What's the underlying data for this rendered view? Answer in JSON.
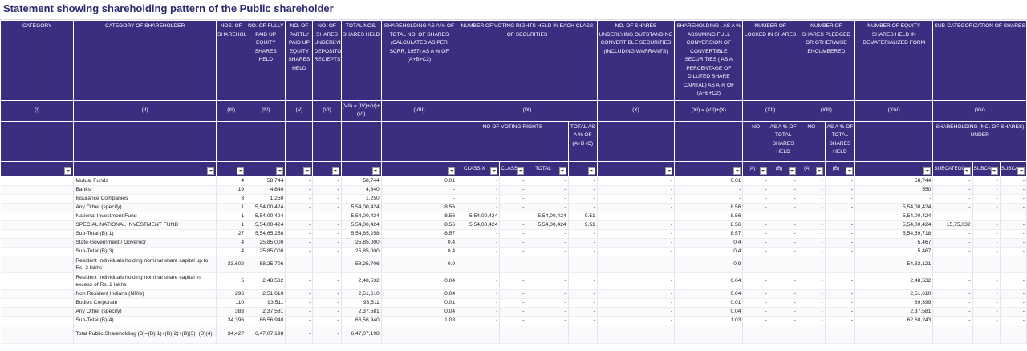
{
  "title": "Statement showing shareholding pattern of the Public shareholder",
  "headers": [
    "CATEGORY",
    "CATEGORY OF SHAREHOLDER",
    "NOS. OF SHAREHOLDERS",
    "NO. OF FULLY PAID UP EQUITY SHARES HELD",
    "NO. OF PARTLY PAID UP EQUITY SHARES HELD",
    "NO. OF SHARES UNDERLYING DEPOSITORY RECIEPTS",
    "TOTAL NOS. SHARES HELD",
    "SHAREHOLDING AS A % OF TOTAL NO. OF SHARES (CALCULATED AS PER SCRR, 1957) AS A % OF (A+B+C2)",
    "NUMBER OF VOTING RIGHTS HELD IN EACH CLASS OF SECURITIES",
    "NO. OF SHARES UNDERLYING OUTSTANDING CONVERTIBLE SECURITIES (INCLUDING WARRANTS)",
    "SHAREHOLDING , AS A % ASSUMING FULL CONVERSION OF CONVERTIBLE SECURITIES ( AS A PERCENTAGE OF DILUTED SHARE CAPITAL) AS A % OF (A+B+C2)",
    "NUMBER OF LOCKED IN SHARES",
    "NUMBER OF SHARES PLEDGED OR OTHERWISE ENCUMBERED",
    "NUMBER OF EQUITY SHARES HELD IN DEMATERIALIZED FORM",
    "SUB-CATEGORIZATION OF SHARES"
  ],
  "numerals": [
    "(I)",
    "(II)",
    "(III)",
    "(IV)",
    "(V)",
    "(VI)",
    "(VII) = (IV)+(V)+ (VI)",
    "(VIII)",
    "(IX)",
    "(X)",
    "(XI) = (VII)+(X)",
    "(XII)",
    "(XIII)",
    "(XIV)",
    "(XV)"
  ],
  "sub_headers": {
    "voting_rights": "NO OF VOTING RIGHTS",
    "total_abc": "TOTAL AS A % OF (A+B+C)",
    "locked_no": "NO",
    "locked_pct": "AS A % OF TOTAL SHARES HELD",
    "pledged_no": "NO",
    "pledged_pct": "AS A % OF TOTAL SHARES HELD",
    "subcat": "SHAREHOLDING (NO. OF SHARES) UNDER"
  },
  "filter_labels": [
    "",
    "",
    "",
    "",
    "",
    "",
    "",
    "",
    "CLASS X",
    "CLASS Y",
    "TOTAL",
    "",
    "",
    "",
    "(A)",
    "(B)",
    "(A)",
    "(B)",
    "",
    "SUBCATEGORY (I)",
    "SUBCATEGORY (",
    "SUBCATEGORY ("
  ],
  "rows": [
    {
      "name": "Mutual Funds",
      "c": [
        "4",
        "58,744",
        "-",
        "-",
        "58,744",
        "0.01",
        "-",
        "-",
        "-",
        "-",
        "-",
        "0.01",
        "-",
        "-",
        "-",
        "-",
        "58,744",
        "-",
        "-",
        "-"
      ]
    },
    {
      "name": "Banks",
      "c": [
        "19",
        "4,840",
        "-",
        "-",
        "4,840",
        "-",
        "-",
        "-",
        "-",
        "-",
        "-",
        "-",
        "-",
        "-",
        "-",
        "-",
        "550",
        "-",
        "-",
        "-"
      ]
    },
    {
      "name": "Insurance Companies",
      "c": [
        "3",
        "1,250",
        "-",
        "-",
        "1,250",
        "-",
        "-",
        "-",
        "-",
        "-",
        "-",
        "-",
        "-",
        "-",
        "-",
        "-",
        "-",
        "-",
        "-",
        "-"
      ]
    },
    {
      "name": "Any Other (specify)",
      "c": [
        "1",
        "5,54,00,424",
        "-",
        "-",
        "5,54,00,424",
        "8.56",
        "-",
        "-",
        "-",
        "-",
        "-",
        "8.56",
        "-",
        "-",
        "-",
        "-",
        "5,54,00,424",
        "-",
        "-",
        "-"
      ]
    },
    {
      "name": "National Investment Fund",
      "c": [
        "1",
        "5,54,00,424",
        "-",
        "-",
        "5,54,00,424",
        "8.56",
        "5,54,00,424",
        "-",
        "5,54,00,424",
        "9.51",
        "-",
        "8.56",
        "-",
        "-",
        "-",
        "-",
        "5,54,00,424",
        "-",
        "-",
        "-"
      ]
    },
    {
      "name": "SPECIAL NATIONAL INVESTMENT FUND",
      "c": [
        "1",
        "5,54,00,424",
        "-",
        "-",
        "5,54,00,424",
        "8.56",
        "5,54,00,424",
        "-",
        "5,54,00,424",
        "9.51",
        "-",
        "8.56",
        "-",
        "-",
        "-",
        "-",
        "5,54,00,424",
        "15,75,032",
        "-",
        "-"
      ]
    },
    {
      "name": "Sub-Total (B)(1)",
      "c": [
        "27",
        "5,54,65,258",
        "-",
        "-",
        "5,54,65,258",
        "8.57",
        "-",
        "-",
        "-",
        "-",
        "-",
        "8.57",
        "-",
        "-",
        "-",
        "-",
        "5,54,59,718",
        "-",
        "-",
        "-"
      ]
    },
    {
      "name": "State Government / Governor",
      "c": [
        "4",
        "25,85,000",
        "-",
        "-",
        "25,85,000",
        "0.4",
        "-",
        "-",
        "-",
        "-",
        "-",
        "0.4",
        "-",
        "-",
        "-",
        "-",
        "5,467",
        "-",
        "-",
        "-"
      ]
    },
    {
      "name": "Sub-Total (B)(3)",
      "c": [
        "4",
        "25,85,000",
        "-",
        "-",
        "25,85,000",
        "0.4",
        "-",
        "-",
        "-",
        "-",
        "-",
        "0.4",
        "-",
        "-",
        "-",
        "-",
        "5,467",
        "-",
        "-",
        "-"
      ]
    },
    {
      "name": "Resident Individuals holding nominal share capital up to Rs. 2 lakhs",
      "c": [
        "33,602",
        "58,25,706",
        "-",
        "-",
        "58,25,706",
        "0.9",
        "-",
        "-",
        "-",
        "-",
        "-",
        "0.9",
        "-",
        "-",
        "-",
        "-",
        "54,33,121",
        "-",
        "-",
        "-"
      ]
    },
    {
      "name": "Resident Individuals holding nominal share capital in excess of Rs. 2 lakhs",
      "c": [
        "5",
        "2,48,532",
        "-",
        "-",
        "2,48,532",
        "0.04",
        "-",
        "-",
        "-",
        "-",
        "-",
        "0.04",
        "-",
        "-",
        "-",
        "-",
        "2,48,532",
        "-",
        "-",
        "-"
      ]
    },
    {
      "name": "Non Resident Indians (NRIs)",
      "c": [
        "296",
        "2,51,610",
        "-",
        "-",
        "2,51,610",
        "0.04",
        "-",
        "-",
        "-",
        "-",
        "-",
        "0.04",
        "-",
        "-",
        "-",
        "-",
        "2,51,610",
        "-",
        "-",
        "-"
      ]
    },
    {
      "name": "Bodies Corporate",
      "c": [
        "110",
        "93,511",
        "-",
        "-",
        "93,511",
        "0.01",
        "-",
        "-",
        "-",
        "-",
        "-",
        "0.01",
        "-",
        "-",
        "-",
        "-",
        "89,399",
        "-",
        "-",
        "-"
      ]
    },
    {
      "name": "Any Other (specify)",
      "c": [
        "383",
        "2,37,581",
        "-",
        "-",
        "2,37,581",
        "0.04",
        "-",
        "-",
        "-",
        "-",
        "-",
        "0.04",
        "-",
        "-",
        "-",
        "-",
        "2,37,581",
        "-",
        "-",
        "-"
      ]
    },
    {
      "name": "Sub-Total (B)(4)",
      "c": [
        "34,396",
        "66,56,940",
        "-",
        "-",
        "66,56,940",
        "1.03",
        "-",
        "-",
        "-",
        "-",
        "-",
        "1.03",
        "-",
        "-",
        "-",
        "-",
        "62,60,243",
        "-",
        "-",
        "-"
      ]
    },
    {
      "name": "Total Public Shareholding (B)=(B)(1)+(B)(2)+(B)(3)+(B)(4)",
      "c": [
        "34,427",
        "6,47,07,198",
        "-",
        "-",
        "6,47,07,198",
        "",
        "",
        "",
        "",
        "",
        "",
        "",
        "",
        "",
        "",
        "",
        "",
        "",
        "",
        ""
      ]
    }
  ]
}
